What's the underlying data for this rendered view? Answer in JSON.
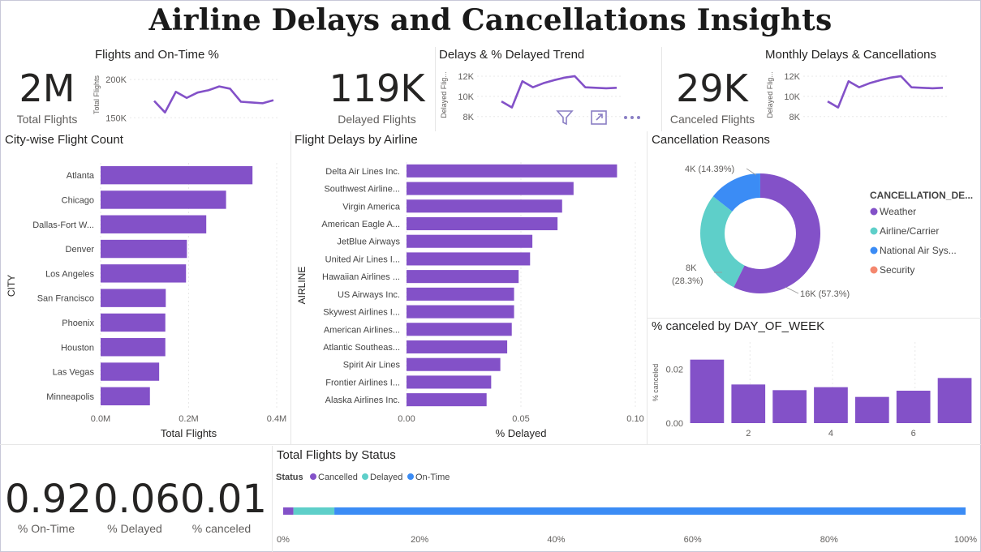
{
  "page": {
    "title": "Airline Delays and Cancellations Insights"
  },
  "colors": {
    "purple": "#8351c8",
    "teal": "#5ecfc9",
    "blue": "#3b8cf5",
    "salmon": "#f4876e"
  },
  "kpis": {
    "total_flights": {
      "value": "2M",
      "label": "Total Flights"
    },
    "delayed_flights": {
      "value": "119K",
      "label": "Delayed Flights"
    },
    "canceled_flights": {
      "value": "29K",
      "label": "Canceled Flights"
    },
    "pct_on_time": {
      "value": "0.92",
      "label": "% On-Time"
    },
    "pct_delayed": {
      "value": "0.06",
      "label": "% Delayed"
    },
    "pct_canceled": {
      "value": "0.01",
      "label": "% canceled"
    }
  },
  "visual_toolbar": {
    "icons": [
      "filter-icon",
      "focus-mode-icon",
      "more-options-icon"
    ]
  },
  "chart_data": [
    {
      "id": "ontime",
      "type": "line",
      "title": "Flights and On-Time %",
      "ylabel": "Total Flights",
      "yticks": [
        "200K",
        "150K"
      ],
      "ylim": [
        145000,
        215000
      ],
      "values": [
        172000,
        157000,
        184000,
        176000,
        183000,
        186000,
        191000,
        188000,
        171000,
        170000,
        169000,
        173000
      ]
    },
    {
      "id": "delays_trend",
      "type": "line",
      "title": "Delays & % Delayed Trend",
      "ylabel": "Delayed Flig...",
      "yticks": [
        "12K",
        "10K",
        "8K"
      ],
      "ylim": [
        7500,
        12800
      ],
      "values": [
        9500,
        8900,
        11500,
        10900,
        11300,
        11600,
        11850,
        12000,
        10900,
        10850,
        10800,
        10850
      ]
    },
    {
      "id": "monthly",
      "type": "line",
      "title": "Monthly Delays & Cancellations",
      "ylabel": "Delayed Flig...",
      "yticks": [
        "12K",
        "10K",
        "8K"
      ],
      "ylim": [
        7500,
        12800
      ],
      "values": [
        9500,
        8900,
        11500,
        10900,
        11300,
        11600,
        11850,
        12000,
        10900,
        10850,
        10800,
        10850
      ]
    },
    {
      "id": "city",
      "type": "bar",
      "title": "City-wise Flight Count",
      "xlabel": "Total Flights",
      "ylabel": "CITY",
      "categories": [
        "Atlanta",
        "Chicago",
        "Dallas-Fort W...",
        "Denver",
        "Los Angeles",
        "San Francisco",
        "Phoenix",
        "Houston",
        "Las Vegas",
        "Minneapolis"
      ],
      "values": [
        345000,
        285000,
        240000,
        196000,
        194000,
        148000,
        147000,
        147000,
        133000,
        112000
      ],
      "xlim": [
        0,
        400000
      ],
      "xticks": [
        "0.0M",
        "0.2M",
        "0.4M"
      ]
    },
    {
      "id": "airline",
      "type": "bar",
      "title": "Flight Delays by Airline",
      "xlabel": "% Delayed",
      "ylabel": "AIRLINE",
      "categories": [
        "Delta Air Lines Inc.",
        "Southwest Airline...",
        "Virgin America",
        "American Eagle A...",
        "JetBlue Airways",
        "United Air Lines I...",
        "Hawaiian Airlines ...",
        "US Airways Inc.",
        "Skywest Airlines I...",
        "American Airlines...",
        "Atlantic Southeas...",
        "Spirit Air Lines",
        "Frontier Airlines I...",
        "Alaska Airlines Inc."
      ],
      "values": [
        0.092,
        0.073,
        0.068,
        0.066,
        0.055,
        0.054,
        0.049,
        0.047,
        0.047,
        0.046,
        0.044,
        0.041,
        0.037,
        0.035
      ],
      "xlim": [
        0,
        0.1
      ],
      "xticks": [
        "0.00",
        "0.05",
        "0.10"
      ]
    },
    {
      "id": "cancellation",
      "type": "pie",
      "title": "Cancellation Reasons",
      "legend_title": "CANCELLATION_DE...",
      "labels": [
        "Weather",
        "Airline/Carrier",
        "National Air Sys...",
        "Security"
      ],
      "values": [
        57.3,
        28.3,
        14.39,
        0.01
      ],
      "data_labels": [
        "16K (57.3%)",
        "8K",
        "(28.3%)",
        "4K (14.39%)"
      ]
    },
    {
      "id": "dow",
      "type": "bar",
      "title": "% canceled by DAY_OF_WEEK",
      "ylabel": "% canceled",
      "categories": [
        1,
        2,
        3,
        4,
        5,
        6,
        7
      ],
      "values": [
        0.0235,
        0.0143,
        0.0122,
        0.0133,
        0.0097,
        0.012,
        0.0167
      ],
      "ylim": [
        0,
        0.03
      ],
      "yticks": [
        "0.02",
        "0.00"
      ],
      "xticks": [
        "2",
        "4",
        "6"
      ]
    },
    {
      "id": "status",
      "type": "bar",
      "title": "Total Flights by Status",
      "legend_title": "Status",
      "series": [
        {
          "name": "Cancelled",
          "value": 0.015
        },
        {
          "name": "Delayed",
          "value": 0.06
        },
        {
          "name": "On-Time",
          "value": 0.925
        }
      ],
      "xticks": [
        "0%",
        "20%",
        "40%",
        "60%",
        "80%",
        "100%"
      ]
    }
  ]
}
